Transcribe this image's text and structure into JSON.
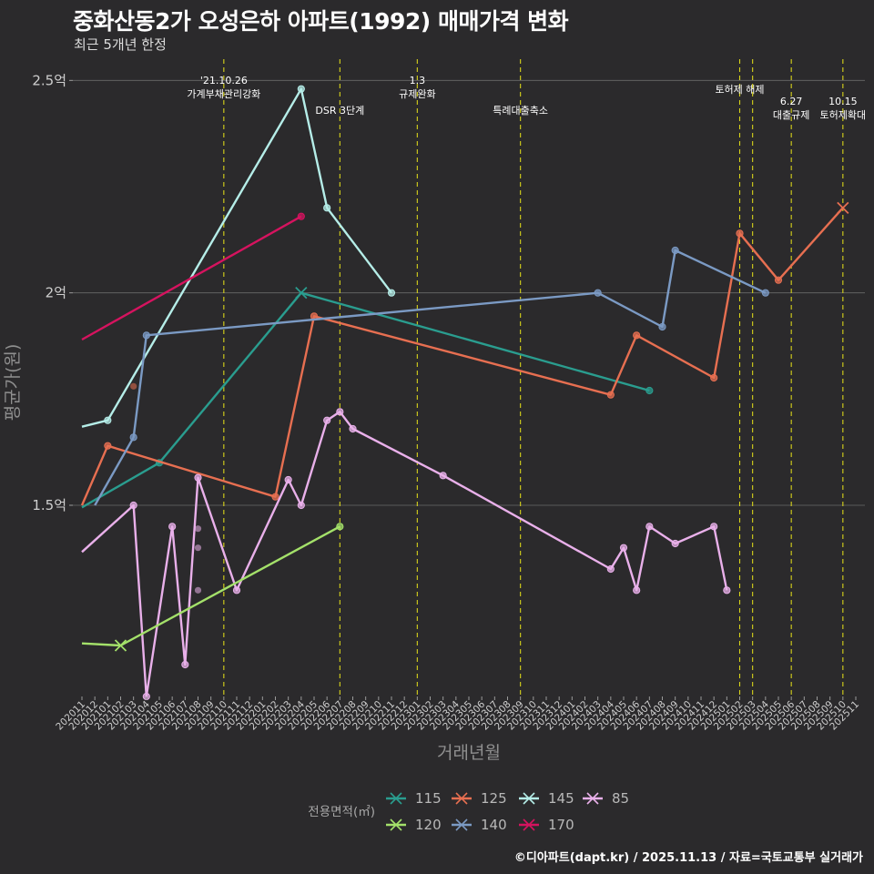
{
  "header": {
    "title": "중화산동2가 오성은하 아파트(1992) 매매가격 변화",
    "subtitle": "최근 5개년 한정"
  },
  "footer": {
    "caption": "©디아파트(dapt.kr) / 2025.11.13 / 자료=국토교통부 실거래가"
  },
  "chart_data": {
    "type": "line",
    "xlabel": "거래년월",
    "ylabel": "평균가(원)",
    "ylim": [
      1.05,
      2.55
    ],
    "y_ticks": [
      {
        "value": 1.5,
        "label": "1.5억"
      },
      {
        "value": 2.0,
        "label": "2억"
      },
      {
        "value": 2.5,
        "label": "2.5억"
      }
    ],
    "x_categories": [
      "202011",
      "202012",
      "202101",
      "202102",
      "202103",
      "202104",
      "202105",
      "202106",
      "202107",
      "202108",
      "202109",
      "202110",
      "202111",
      "202112",
      "202201",
      "202202",
      "202203",
      "202204",
      "202205",
      "202206",
      "202207",
      "202208",
      "202209",
      "202210",
      "202211",
      "202212",
      "202301",
      "202302",
      "202303",
      "202304",
      "202305",
      "202306",
      "202307",
      "202308",
      "202309",
      "202310",
      "202311",
      "202312",
      "202401",
      "202402",
      "202403",
      "202404",
      "202405",
      "202406",
      "202407",
      "202408",
      "202409",
      "202410",
      "202411",
      "202412",
      "202501",
      "202502",
      "202503",
      "202504",
      "202505",
      "202506",
      "202507",
      "202508",
      "202509",
      "202510",
      "202511"
    ],
    "events": [
      {
        "x": 11.0,
        "label": "'21.10.26\n가계부채관리강화",
        "row": 0
      },
      {
        "x": 20.0,
        "label": "DSR 3단계",
        "row": 1
      },
      {
        "x": 26.0,
        "label": "1.3\n규제완화",
        "row": 0
      },
      {
        "x": 34.0,
        "label": "특례대출축소",
        "row": 1
      },
      {
        "x": 51.0,
        "label": "토허제 해제",
        "row": 0
      },
      {
        "x": 52.0,
        "label": "",
        "row": 0
      },
      {
        "x": 55.0,
        "label": "6.27\n대출규제",
        "row": 1
      },
      {
        "x": 59.0,
        "label": "10.15\n토허제확대",
        "row": 1
      }
    ],
    "legend_title": "전용면적(㎡)",
    "series": [
      {
        "name": "115",
        "color": "#2a9d8f",
        "points": [
          [
            0,
            1.495
          ],
          [
            6,
            1.6
          ],
          [
            17,
            2.0
          ],
          [
            44,
            1.77
          ]
        ],
        "marker_x": 17
      },
      {
        "name": "125",
        "color": "#e76f51",
        "points": [
          [
            0,
            1.5
          ],
          [
            2,
            1.64
          ],
          [
            15,
            1.52
          ],
          [
            18,
            1.945
          ],
          [
            41,
            1.76
          ],
          [
            43,
            1.9
          ],
          [
            49,
            1.8
          ],
          [
            51,
            2.14
          ],
          [
            54,
            2.03
          ],
          [
            59,
            2.2
          ]
        ],
        "marker_x": 59
      },
      {
        "name": "145",
        "color": "#b5ede8",
        "points": [
          [
            0,
            1.685
          ],
          [
            2,
            1.7
          ],
          [
            17,
            2.48
          ],
          [
            19,
            2.2
          ],
          [
            24,
            2.0
          ]
        ],
        "marker_x": null
      },
      {
        "name": "85",
        "color": "#e9b0ea",
        "points": [
          [
            0,
            1.39
          ],
          [
            4,
            1.5
          ],
          [
            5,
            1.05
          ],
          [
            7,
            1.45
          ],
          [
            8,
            1.125
          ],
          [
            9,
            1.565
          ],
          [
            12,
            1.3
          ],
          [
            16,
            1.56
          ],
          [
            17,
            1.5
          ],
          [
            19,
            1.7
          ],
          [
            20,
            1.72
          ],
          [
            21,
            1.68
          ],
          [
            28,
            1.57
          ],
          [
            41,
            1.35
          ],
          [
            42,
            1.4
          ],
          [
            43,
            1.3
          ],
          [
            44,
            1.45
          ],
          [
            46,
            1.41
          ],
          [
            49,
            1.45
          ],
          [
            50,
            1.3
          ]
        ],
        "marker_x": null
      },
      {
        "name": "120",
        "color": "#a4e16a",
        "points": [
          [
            0,
            1.175
          ],
          [
            3,
            1.17
          ],
          [
            20,
            1.45
          ]
        ],
        "marker_x": 3
      },
      {
        "name": "140",
        "color": "#7b9ac4",
        "points": [
          [
            1,
            1.5
          ],
          [
            4,
            1.66
          ],
          [
            5,
            1.9
          ],
          [
            40,
            2.0
          ],
          [
            45,
            1.92
          ],
          [
            46,
            2.1
          ],
          [
            53,
            2.0
          ]
        ],
        "marker_x": null
      },
      {
        "name": "170",
        "color": "#d6135f",
        "points": [
          [
            0,
            1.89
          ],
          [
            17,
            2.18
          ]
        ],
        "marker_x": null
      }
    ],
    "extra_points": [
      {
        "x": 4,
        "y": 1.78,
        "color": "#e76f51"
      },
      {
        "x": 9,
        "y": 1.445,
        "color": "#e9b0ea"
      },
      {
        "x": 9,
        "y": 1.4,
        "color": "#e9b0ea"
      },
      {
        "x": 9,
        "y": 1.3,
        "color": "#e9b0ea"
      }
    ]
  }
}
